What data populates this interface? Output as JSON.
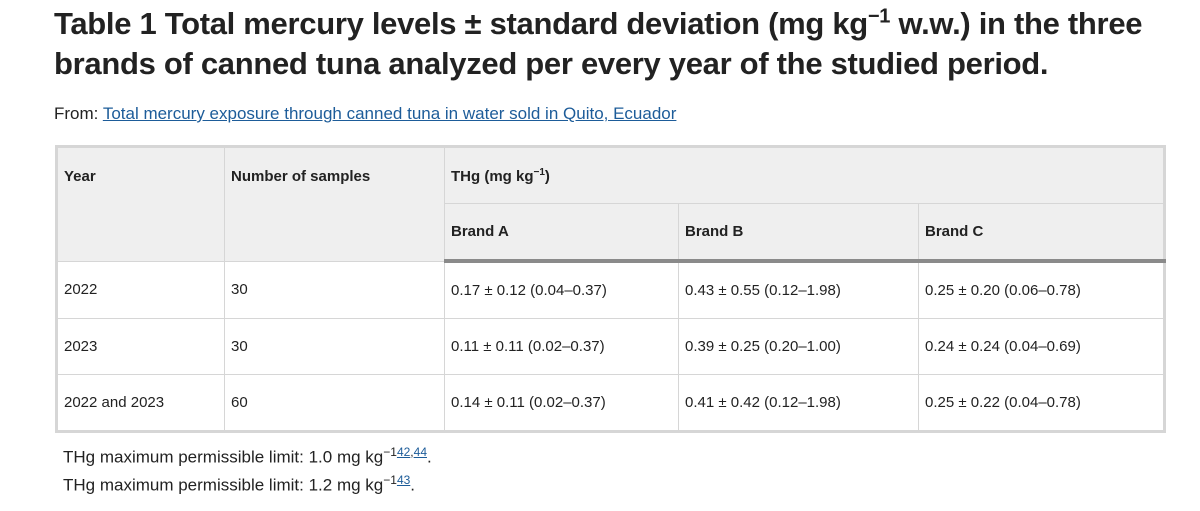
{
  "header": {
    "title": {
      "text": "Table 1 Total mercury levels ± standard deviation (mg kg",
      "superscript": "−1",
      "text_end": " w.w.) in the three brands of canned tuna analyzed per every year of the studied period."
    },
    "source": {
      "label": "From:",
      "link": "Total mercury exposure through canned tuna in water sold in Quito, Ecuador"
    }
  },
  "table": {
    "headers": {
      "year": "Year",
      "samples": "Number of samples",
      "thg": "THg (mg kg",
      "thg_sup": "−1",
      "thg_end": ")",
      "brands": [
        "Brand A",
        "Brand B",
        "Brand C"
      ]
    },
    "rows": [
      [
        "2022",
        "30",
        "0.17 ± 0.12 (0.04–0.37)",
        "0.43 ± 0.55 (0.12–1.98)",
        "0.25 ± 0.20 (0.06–0.78)"
      ],
      [
        "2023",
        "30",
        "0.11 ± 0.11 (0.02–0.37)",
        "0.39 ± 0.25 (0.20–1.00)",
        "0.24 ± 0.24 (0.04–0.69)"
      ],
      [
        "2022 and 2023",
        "60",
        "0.14 ± 0.11 (0.02–0.37)",
        "0.41 ± 0.42 (0.12–1.98)",
        "0.25 ± 0.22 (0.04–0.78)"
      ]
    ]
  },
  "footnotes": [
    {
      "text": "THg maximum permissible limit: 1.0 mg kg",
      "superscript": "−1",
      "refs": [
        "42",
        "44"
      ],
      "ref_separator": ",",
      "end": "."
    },
    {
      "text": "THg maximum permissible limit: 1.2 mg kg",
      "superscript": "−1",
      "refs": [
        "43"
      ],
      "end": "."
    }
  ]
}
